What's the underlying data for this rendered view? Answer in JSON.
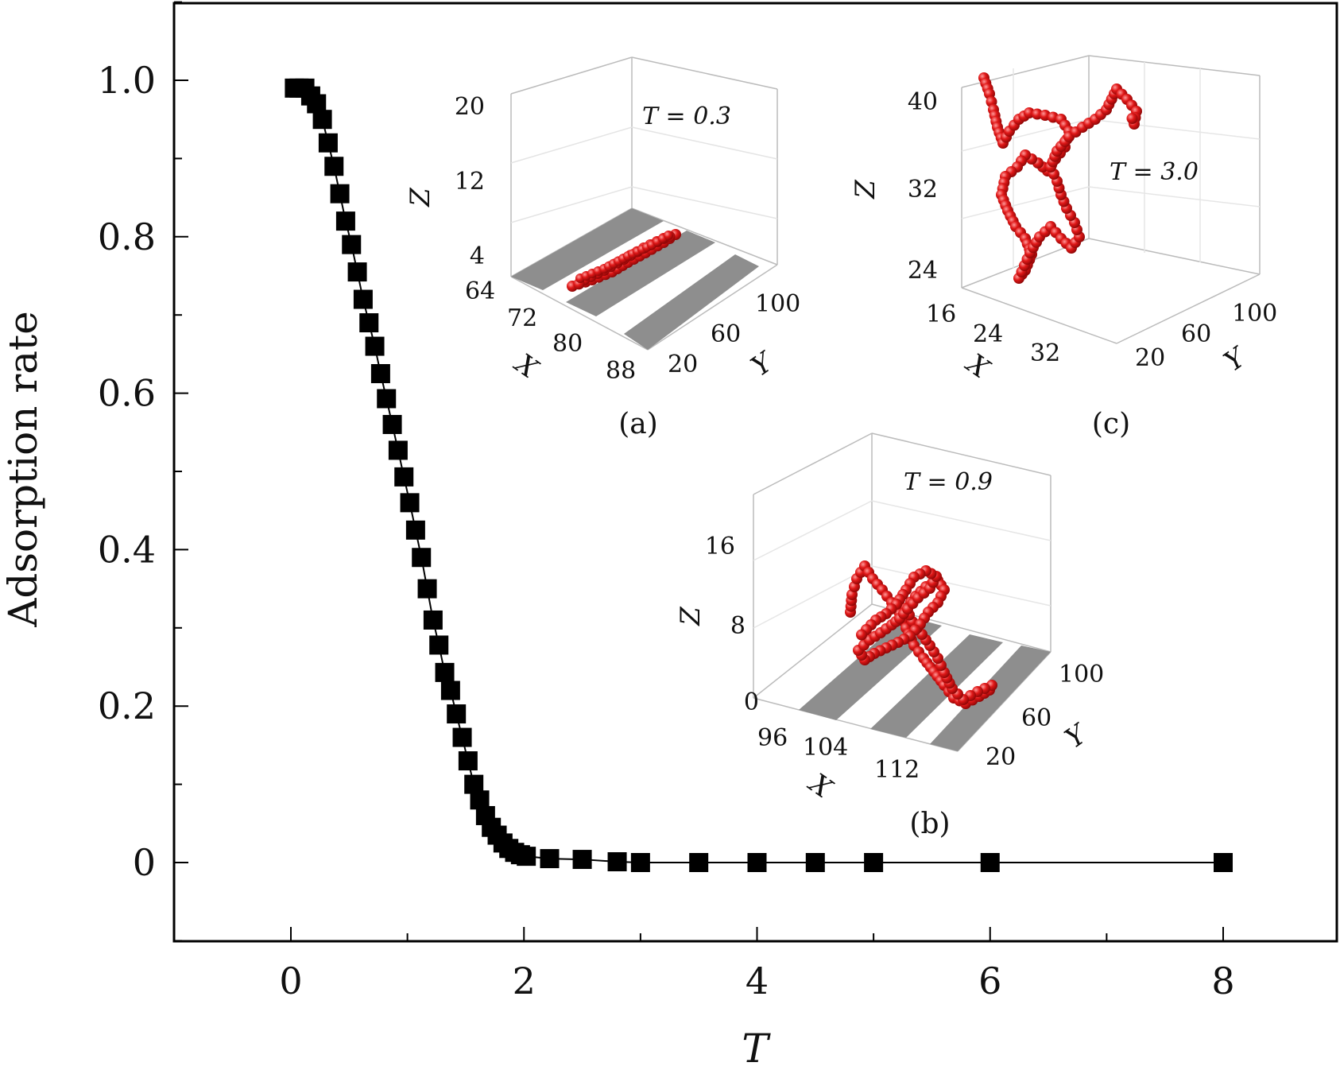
{
  "chart_data": {
    "type": "scatter",
    "xlabel": "T",
    "ylabel": "Adsorption rate",
    "xlim": [
      -1,
      9
    ],
    "ylim": [
      -0.1,
      1.1
    ],
    "x_ticks": [
      0,
      2,
      4,
      6,
      8
    ],
    "x_tick_labels": [
      "0",
      "2",
      "4",
      "6",
      "8"
    ],
    "y_ticks": [
      0,
      0.2,
      0.4,
      0.6,
      0.8,
      1.0
    ],
    "y_tick_labels": [
      "0",
      "0.2",
      "0.4",
      "0.6",
      "0.8",
      "1.0"
    ],
    "grid": false,
    "marker": "square",
    "marker_color": "#000000",
    "line_color": "#000000",
    "series": [
      {
        "x": [
          0.03,
          0.07,
          0.12,
          0.17,
          0.22,
          0.27,
          0.32,
          0.37,
          0.42,
          0.47,
          0.52,
          0.57,
          0.62,
          0.67,
          0.72,
          0.77,
          0.82,
          0.87,
          0.92,
          0.97,
          1.02,
          1.07,
          1.12,
          1.17,
          1.22,
          1.27,
          1.32,
          1.37,
          1.42,
          1.47,
          1.52,
          1.57,
          1.62,
          1.67,
          1.72,
          1.77,
          1.82,
          1.87,
          1.92,
          1.97,
          2.02,
          2.22,
          2.5,
          2.8,
          3.0,
          3.5,
          4.0,
          4.5,
          5.0,
          6.0,
          8.0
        ],
        "y": [
          0.99,
          0.99,
          0.99,
          0.98,
          0.97,
          0.95,
          0.92,
          0.89,
          0.855,
          0.82,
          0.79,
          0.755,
          0.72,
          0.69,
          0.66,
          0.625,
          0.593,
          0.56,
          0.527,
          0.493,
          0.46,
          0.425,
          0.39,
          0.35,
          0.31,
          0.278,
          0.243,
          0.22,
          0.19,
          0.16,
          0.13,
          0.1,
          0.08,
          0.06,
          0.045,
          0.035,
          0.025,
          0.018,
          0.013,
          0.01,
          0.008,
          0.005,
          0.004,
          0.001,
          0.0,
          0.0,
          0.0,
          0.0,
          0.0,
          0.0,
          0.0
        ]
      }
    ]
  },
  "insets": {
    "a": {
      "caption": "(a)",
      "annotation": "T = 0.3",
      "z_label": "Z",
      "x_label": "X",
      "y_label": "Y",
      "z_ticks": [
        "20",
        "12",
        "4"
      ],
      "x_ticks": [
        "64",
        "72",
        "80",
        "88"
      ],
      "y_ticks": [
        "100",
        "60",
        "20"
      ]
    },
    "b": {
      "caption": "(b)",
      "annotation": "T = 0.9",
      "z_label": "Z",
      "x_label": "X",
      "y_label": "Y",
      "z_ticks": [
        "16",
        "8",
        "0"
      ],
      "x_ticks": [
        "96",
        "104",
        "112"
      ],
      "y_ticks": [
        "100",
        "60",
        "20"
      ]
    },
    "c": {
      "caption": "(c)",
      "annotation": "T = 3.0",
      "z_label": "Z",
      "x_label": "X",
      "y_label": "Y",
      "z_ticks": [
        "40",
        "32",
        "24"
      ],
      "x_ticks": [
        "16",
        "24",
        "32"
      ],
      "y_ticks": [
        "100",
        "60",
        "20"
      ]
    },
    "bead_color": "#e01818",
    "stripe_color": "#8e8e8e"
  }
}
